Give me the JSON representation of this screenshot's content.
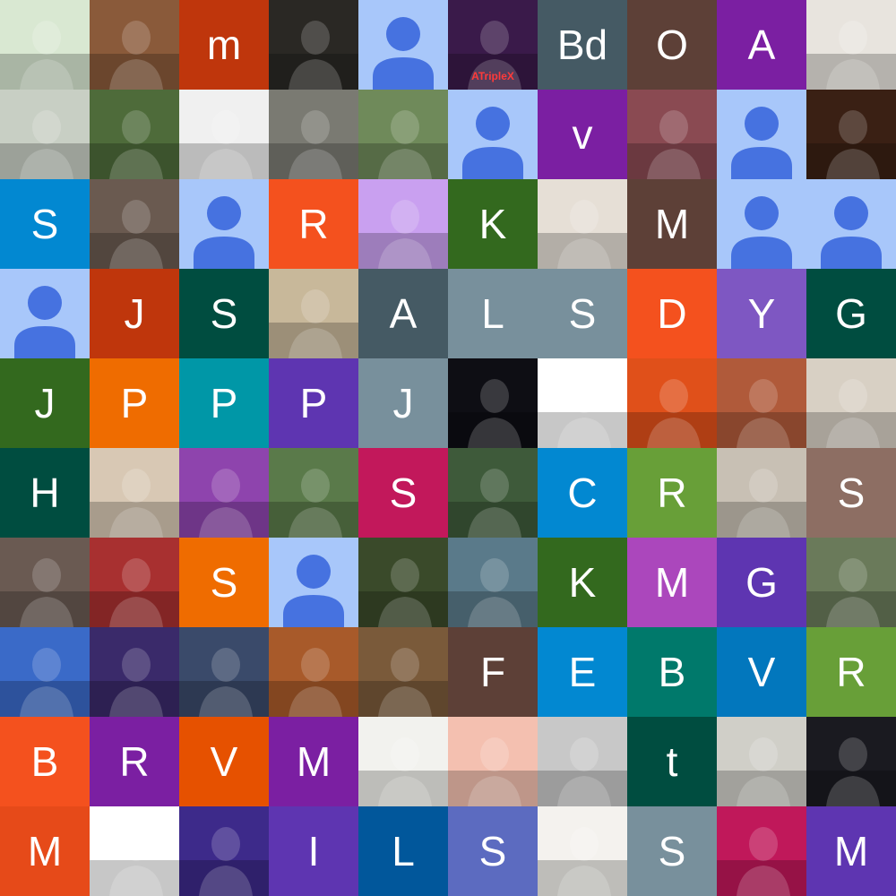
{
  "tiles": [
    {
      "kind": "photo",
      "bg": "#d9e8d2",
      "icon": "anime-girl-photo"
    },
    {
      "kind": "photo",
      "bg": "#8a5a3a",
      "icon": "man-portrait-photo"
    },
    {
      "kind": "letter",
      "bg": "#bf360c",
      "text": "m"
    },
    {
      "kind": "photo",
      "bg": "#2a2824",
      "icon": "feather-photo"
    },
    {
      "kind": "placeholder",
      "bg": "#a8c7fa",
      "icon": "default-avatar-icon"
    },
    {
      "kind": "photo",
      "bg": "#3a1a4a",
      "icon": "hooded-figure-photo",
      "caption": "ATripleX"
    },
    {
      "kind": "letter",
      "bg": "#455a64",
      "text": "Bd"
    },
    {
      "kind": "letter",
      "bg": "#5d4037",
      "text": "O"
    },
    {
      "kind": "letter",
      "bg": "#7b1fa2",
      "text": "A"
    },
    {
      "kind": "photo",
      "bg": "#e8e4de",
      "icon": "man-in-suit-photo"
    },
    {
      "kind": "photo",
      "bg": "#c8cfc4",
      "icon": "handwritten-note-photo"
    },
    {
      "kind": "photo",
      "bg": "#4e6b3a",
      "icon": "man-with-flowers-photo"
    },
    {
      "kind": "photo",
      "bg": "#f0f0f0",
      "icon": "pilot-portrait-photo"
    },
    {
      "kind": "photo",
      "bg": "#7a7a72",
      "icon": "elephant-photo"
    },
    {
      "kind": "photo",
      "bg": "#6f8a5a",
      "icon": "park-photo"
    },
    {
      "kind": "placeholder",
      "bg": "#a8c7fa",
      "icon": "default-avatar-icon"
    },
    {
      "kind": "letter",
      "bg": "#7b1fa2",
      "text": "v"
    },
    {
      "kind": "photo",
      "bg": "#8a4a52",
      "icon": "woman-selfie-photo"
    },
    {
      "kind": "placeholder",
      "bg": "#a8c7fa",
      "icon": "default-avatar-icon"
    },
    {
      "kind": "photo",
      "bg": "#3a2014",
      "icon": "fantasy-art-photo"
    },
    {
      "kind": "letter",
      "bg": "#0288d1",
      "text": "S"
    },
    {
      "kind": "photo",
      "bg": "#6a5a50",
      "icon": "man-waving-photo"
    },
    {
      "kind": "placeholder",
      "bg": "#a8c7fa",
      "icon": "default-avatar-icon"
    },
    {
      "kind": "letter",
      "bg": "#f4511e",
      "text": "R"
    },
    {
      "kind": "photo",
      "bg": "#c9a0f0",
      "icon": "panda-illustration"
    },
    {
      "kind": "letter",
      "bg": "#33691e",
      "text": "K"
    },
    {
      "kind": "photo",
      "bg": "#e6dfd6",
      "icon": "man-white-shirt-photo"
    },
    {
      "kind": "letter",
      "bg": "#5d4037",
      "text": "M"
    },
    {
      "kind": "placeholder",
      "bg": "#a8c7fa",
      "icon": "default-avatar-icon"
    },
    {
      "kind": "placeholder",
      "bg": "#a8c7fa",
      "icon": "default-avatar-icon"
    },
    {
      "kind": "placeholder",
      "bg": "#a8c7fa",
      "icon": "default-avatar-icon"
    },
    {
      "kind": "letter",
      "bg": "#bf360c",
      "text": "J"
    },
    {
      "kind": "letter",
      "bg": "#004d40",
      "text": "S"
    },
    {
      "kind": "photo",
      "bg": "#c8b89a",
      "icon": "man-with-camel-photo"
    },
    {
      "kind": "letter",
      "bg": "#455a64",
      "text": "A"
    },
    {
      "kind": "letter",
      "bg": "#78909c",
      "text": "L"
    },
    {
      "kind": "letter",
      "bg": "#78909c",
      "text": "S"
    },
    {
      "kind": "letter",
      "bg": "#f4511e",
      "text": "D"
    },
    {
      "kind": "letter",
      "bg": "#7e57c2",
      "text": "Y"
    },
    {
      "kind": "letter",
      "bg": "#004d40",
      "text": "G"
    },
    {
      "kind": "letter",
      "bg": "#33691e",
      "text": "J"
    },
    {
      "kind": "letter",
      "bg": "#ef6c00",
      "text": "P"
    },
    {
      "kind": "letter",
      "bg": "#0097a7",
      "text": "P"
    },
    {
      "kind": "letter",
      "bg": "#5e35b1",
      "text": "P"
    },
    {
      "kind": "letter",
      "bg": "#78909c",
      "text": "J"
    },
    {
      "kind": "photo",
      "bg": "#0e0e14",
      "icon": "planet-photo"
    },
    {
      "kind": "photo",
      "bg": "#ffffff",
      "icon": "glitch-v-logo"
    },
    {
      "kind": "photo",
      "bg": "#e0501a",
      "icon": "orange-flower-photo"
    },
    {
      "kind": "photo",
      "bg": "#b05a3a",
      "icon": "man-portrait-warm-photo"
    },
    {
      "kind": "photo",
      "bg": "#d8d0c4",
      "icon": "manga-girl-illustration"
    },
    {
      "kind": "letter",
      "bg": "#004d40",
      "text": "H"
    },
    {
      "kind": "photo",
      "bg": "#d8c8b4",
      "icon": "smiling-man-glasses-photo"
    },
    {
      "kind": "photo",
      "bg": "#8e44ad",
      "icon": "ketchup-bottle-illustration"
    },
    {
      "kind": "photo",
      "bg": "#5a7a4a",
      "icon": "man-in-white-robe-photo"
    },
    {
      "kind": "letter",
      "bg": "#c2185b",
      "text": "S"
    },
    {
      "kind": "photo",
      "bg": "#3e5a3a",
      "icon": "man-sitting-outdoors-photo"
    },
    {
      "kind": "letter",
      "bg": "#0288d1",
      "text": "C"
    },
    {
      "kind": "letter",
      "bg": "#689f38",
      "text": "R"
    },
    {
      "kind": "photo",
      "bg": "#c8c0b4",
      "icon": "man-standing-photo"
    },
    {
      "kind": "letter",
      "bg": "#8d6e63",
      "text": "S"
    },
    {
      "kind": "photo",
      "bg": "#6a5a52",
      "icon": "woman-smiling-photo"
    },
    {
      "kind": "photo",
      "bg": "#a83030",
      "icon": "woman-portrait-photo"
    },
    {
      "kind": "letter",
      "bg": "#ef6c00",
      "text": "S"
    },
    {
      "kind": "placeholder",
      "bg": "#a8c7fa",
      "icon": "default-avatar-icon"
    },
    {
      "kind": "photo",
      "bg": "#3a4a2a",
      "icon": "man-in-suit-flowers-photo"
    },
    {
      "kind": "photo",
      "bg": "#5a7a8a",
      "icon": "man-by-water-photo"
    },
    {
      "kind": "letter",
      "bg": "#33691e",
      "text": "K"
    },
    {
      "kind": "letter",
      "bg": "#ab47bc",
      "text": "M"
    },
    {
      "kind": "letter",
      "bg": "#5e35b1",
      "text": "G"
    },
    {
      "kind": "photo",
      "bg": "#6a7a5a",
      "icon": "older-man-photo"
    },
    {
      "kind": "photo",
      "bg": "#3a6ac8",
      "icon": "man-excited-photo"
    },
    {
      "kind": "photo",
      "bg": "#3a2a6a",
      "icon": "animated-princess-illustration"
    },
    {
      "kind": "photo",
      "bg": "#3a4a6a",
      "icon": "face-art-photo"
    },
    {
      "kind": "photo",
      "bg": "#a85a2a",
      "icon": "man-formal-photo"
    },
    {
      "kind": "photo",
      "bg": "#7a5a3a",
      "icon": "person-with-camera-photo"
    },
    {
      "kind": "letter",
      "bg": "#5d4037",
      "text": "F"
    },
    {
      "kind": "letter",
      "bg": "#0288d1",
      "text": "E"
    },
    {
      "kind": "letter",
      "bg": "#00796b",
      "text": "B"
    },
    {
      "kind": "letter",
      "bg": "#0277bd",
      "text": "V"
    },
    {
      "kind": "letter",
      "bg": "#689f38",
      "text": "R"
    },
    {
      "kind": "letter",
      "bg": "#f4511e",
      "text": "B"
    },
    {
      "kind": "letter",
      "bg": "#7b1fa2",
      "text": "R"
    },
    {
      "kind": "letter",
      "bg": "#e65100",
      "text": "V"
    },
    {
      "kind": "letter",
      "bg": "#7b1fa2",
      "text": "M"
    },
    {
      "kind": "photo",
      "bg": "#f2f2ee",
      "icon": "cartoon-boy-illustration"
    },
    {
      "kind": "photo",
      "bg": "#f4c0b0",
      "icon": "mountain-illustration"
    },
    {
      "kind": "photo",
      "bg": "#c8c8c8",
      "icon": "man-bw-portrait-photo"
    },
    {
      "kind": "letter",
      "bg": "#004d40",
      "text": "t"
    },
    {
      "kind": "photo",
      "bg": "#d0cfc8",
      "icon": "skull-beret-illustration"
    },
    {
      "kind": "photo",
      "bg": "#1a1a20",
      "icon": "gaming-logo"
    },
    {
      "kind": "letter",
      "bg": "#e64a19",
      "text": "M"
    },
    {
      "kind": "photo",
      "bg": "#ffffff",
      "icon": "people-photo"
    },
    {
      "kind": "photo",
      "bg": "#3d2a8a",
      "icon": "space-station-illustration"
    },
    {
      "kind": "letter",
      "bg": "#5e35b1",
      "text": "I"
    },
    {
      "kind": "letter",
      "bg": "#01579b",
      "text": "L"
    },
    {
      "kind": "letter",
      "bg": "#5c6bc0",
      "text": "S"
    },
    {
      "kind": "photo",
      "bg": "#f4f2ee",
      "icon": "rose-ankh-drawing"
    },
    {
      "kind": "letter",
      "bg": "#78909c",
      "text": "S"
    },
    {
      "kind": "photo",
      "bg": "#c0185a",
      "icon": "heart-letter-s-illustration"
    },
    {
      "kind": "letter",
      "bg": "#5e35b1",
      "text": "M"
    }
  ]
}
